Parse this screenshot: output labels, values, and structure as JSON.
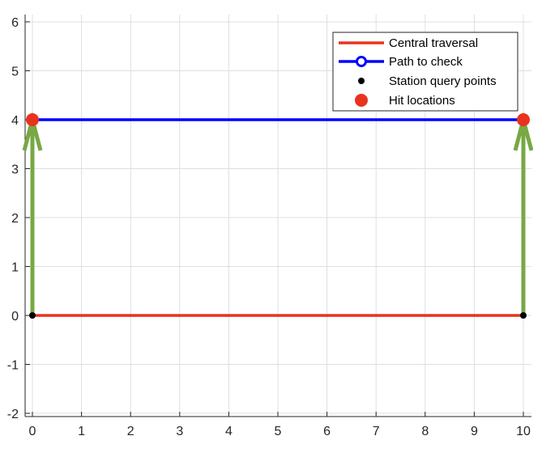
{
  "chart_data": {
    "type": "line",
    "title": "",
    "xlabel": "",
    "ylabel": "",
    "xlim": [
      0,
      10
    ],
    "ylim": [
      -2,
      6
    ],
    "xticks": [
      0,
      1,
      2,
      3,
      4,
      5,
      6,
      7,
      8,
      9,
      10
    ],
    "yticks": [
      -2,
      -1,
      0,
      1,
      2,
      3,
      4,
      5,
      6
    ],
    "grid": true,
    "legend_position": "top-right",
    "series": [
      {
        "name": "Central traversal",
        "kind": "line",
        "color": "#e8331f",
        "x": [
          0,
          10
        ],
        "y": [
          0,
          0
        ]
      },
      {
        "name": "Path to check",
        "kind": "line-with-circle-marker",
        "color": "#0000ff",
        "x": [
          0,
          10
        ],
        "y": [
          4,
          4
        ]
      },
      {
        "name": "Station query points",
        "kind": "points",
        "color": "#000000",
        "x": [
          0,
          10
        ],
        "y": [
          0,
          0
        ]
      },
      {
        "name": "Hit locations",
        "kind": "points",
        "color": "#e8331f",
        "x": [
          0,
          10
        ],
        "y": [
          4,
          4
        ]
      }
    ],
    "arrows": {
      "color": "#77a844",
      "items": [
        {
          "from": [
            0,
            0
          ],
          "to": [
            0,
            4
          ]
        },
        {
          "from": [
            10,
            0
          ],
          "to": [
            10,
            4
          ]
        }
      ]
    }
  }
}
